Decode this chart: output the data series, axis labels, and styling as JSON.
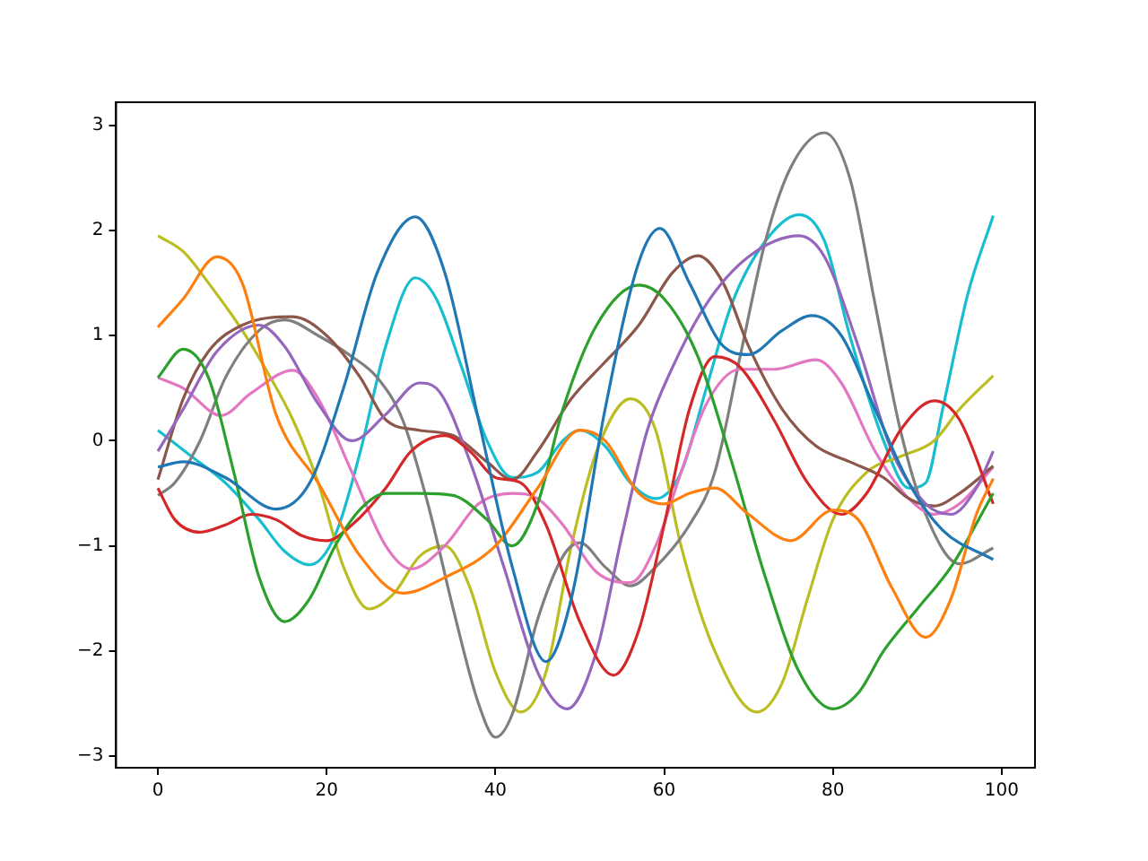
{
  "chart_data": {
    "type": "line",
    "xlim": [
      -4.95,
      103.95
    ],
    "ylim": [
      -3.11,
      3.22
    ],
    "xticks": [
      0,
      20,
      40,
      60,
      80,
      100
    ],
    "yticks": [
      -3,
      -2,
      -1,
      0,
      1,
      2,
      3
    ],
    "grid": false,
    "legend": false,
    "marker": "none",
    "line_style": "solid",
    "series": [
      {
        "color": "#1f77b4",
        "x": [
          0,
          3,
          8,
          14,
          18,
          22,
          26,
          30.5,
          34,
          38,
          42,
          46,
          49,
          53,
          57,
          59.5,
          63,
          67,
          70,
          74,
          77.5,
          81,
          85,
          89,
          93,
          99
        ],
        "values": [
          -0.25,
          -0.2,
          -0.35,
          -0.65,
          -0.4,
          0.5,
          1.6,
          2.13,
          1.6,
          0.2,
          -1.2,
          -2.1,
          -1.5,
          0.3,
          1.7,
          2.02,
          1.5,
          0.9,
          0.82,
          1.05,
          1.19,
          1.0,
          0.3,
          -0.4,
          -0.85,
          -1.13
        ]
      },
      {
        "color": "#ff7f0e",
        "x": [
          0,
          3,
          7,
          10,
          14,
          19,
          24,
          29,
          34,
          40,
          45,
          50,
          53,
          57,
          60,
          63,
          66,
          70,
          75,
          80,
          83,
          87,
          91,
          94,
          97,
          99
        ],
        "values": [
          1.08,
          1.35,
          1.75,
          1.5,
          0.25,
          -0.4,
          -1.1,
          -1.45,
          -1.3,
          -1.0,
          -0.45,
          0.1,
          0,
          -0.5,
          -0.6,
          -0.5,
          -0.45,
          -0.7,
          -0.95,
          -0.66,
          -0.75,
          -1.4,
          -1.87,
          -1.5,
          -0.7,
          -0.36
        ]
      },
      {
        "color": "#2ca02c",
        "x": [
          0,
          3,
          6,
          9,
          12,
          15,
          18,
          21,
          24,
          27,
          31,
          35,
          39,
          42,
          45,
          48,
          52,
          57,
          60,
          64,
          68,
          72,
          76,
          80,
          83,
          86,
          90,
          94,
          99
        ],
        "values": [
          0.6,
          0.87,
          0.6,
          -0.3,
          -1.3,
          -1.72,
          -1.5,
          -1.0,
          -0.65,
          -0.5,
          -0.5,
          -0.52,
          -0.75,
          -1.0,
          -0.6,
          0.3,
          1.1,
          1.48,
          1.35,
          0.8,
          -0.2,
          -1.3,
          -2.2,
          -2.55,
          -2.4,
          -2.0,
          -1.6,
          -1.2,
          -0.5
        ]
      },
      {
        "color": "#d62728",
        "x": [
          0,
          2,
          5,
          8,
          11,
          14,
          17,
          20,
          23,
          27,
          30,
          34,
          37,
          40,
          43,
          46,
          50,
          54,
          57,
          60,
          63,
          66,
          69,
          73,
          77,
          81,
          84,
          88,
          92,
          95,
          99
        ],
        "values": [
          -0.45,
          -0.75,
          -0.87,
          -0.8,
          -0.7,
          -0.75,
          -0.9,
          -0.95,
          -0.8,
          -0.45,
          -0.1,
          0.05,
          -0.1,
          -0.35,
          -0.4,
          -0.8,
          -1.72,
          -2.23,
          -1.8,
          -0.8,
          0.3,
          0.8,
          0.7,
          0.2,
          -0.4,
          -0.7,
          -0.5,
          0.1,
          0.38,
          0.2,
          -0.6
        ]
      },
      {
        "color": "#9467bd",
        "x": [
          0,
          3,
          7,
          12,
          15,
          19,
          23,
          27,
          31,
          33,
          37,
          41,
          45,
          48.5,
          52,
          55,
          58,
          61,
          65,
          70,
          76,
          79,
          83,
          87,
          91,
          94,
          97,
          99
        ],
        "values": [
          -0.1,
          0.3,
          0.85,
          1.1,
          0.9,
          0.35,
          0,
          0.25,
          0.55,
          0.5,
          -0.2,
          -1.2,
          -2.2,
          -2.55,
          -2.0,
          -0.9,
          0.1,
          0.7,
          1.3,
          1.75,
          1.95,
          1.75,
          0.9,
          -0.1,
          -0.6,
          -0.7,
          -0.45,
          -0.1
        ]
      },
      {
        "color": "#8c564b",
        "x": [
          0,
          3,
          6,
          10,
          16,
          20,
          24,
          27,
          31,
          35,
          39,
          42,
          45,
          49,
          53,
          57,
          61,
          64,
          67,
          70,
          74,
          78,
          82,
          86,
          89,
          92,
          95,
          99
        ],
        "values": [
          -0.37,
          0.4,
          0.85,
          1.1,
          1.18,
          1.0,
          0.6,
          0.2,
          0.1,
          0.05,
          -0.2,
          -0.37,
          -0.1,
          0.4,
          0.75,
          1.1,
          1.6,
          1.76,
          1.5,
          0.9,
          0.3,
          -0.05,
          -0.2,
          -0.35,
          -0.55,
          -0.62,
          -0.5,
          -0.24
        ]
      },
      {
        "color": "#e377c2",
        "x": [
          0,
          3,
          7.5,
          11,
          16,
          19,
          23,
          27,
          30,
          34,
          38,
          42,
          45,
          48,
          52,
          56,
          59,
          62,
          65,
          69,
          73,
          78,
          81,
          85,
          89,
          92,
          95,
          99
        ],
        "values": [
          0.6,
          0.5,
          0.24,
          0.45,
          0.67,
          0.4,
          -0.3,
          -1.0,
          -1.22,
          -1.0,
          -0.6,
          -0.5,
          -0.55,
          -0.8,
          -1.25,
          -1.35,
          -1.0,
          -0.3,
          0.35,
          0.68,
          0.68,
          0.77,
          0.55,
          -0.1,
          -0.55,
          -0.7,
          -0.6,
          -0.25
        ]
      },
      {
        "color": "#7f7f7f",
        "x": [
          0,
          2,
          5,
          8,
          12,
          15,
          19,
          23,
          26,
          29,
          32,
          35,
          38,
          40,
          42,
          45,
          48,
          50,
          53,
          56,
          59,
          63,
          66,
          69,
          72,
          75,
          79,
          82,
          85,
          88,
          91,
          95,
          99
        ],
        "values": [
          -0.52,
          -0.4,
          0,
          0.6,
          1.05,
          1.15,
          1.0,
          0.8,
          0.6,
          0.2,
          -0.6,
          -1.6,
          -2.5,
          -2.82,
          -2.6,
          -1.7,
          -1.1,
          -0.97,
          -1.2,
          -1.38,
          -1.2,
          -0.8,
          -0.3,
          0.8,
          1.9,
          2.6,
          2.93,
          2.5,
          1.3,
          0.1,
          -0.7,
          -1.17,
          -1.02
        ]
      },
      {
        "color": "#bcbd22",
        "x": [
          0,
          3,
          6,
          10,
          13,
          16,
          19,
          22,
          25,
          28,
          31,
          34,
          37,
          40,
          43,
          46,
          49,
          52,
          56,
          59,
          62,
          66,
          71,
          74,
          77,
          80,
          84,
          88,
          92,
          95,
          99
        ],
        "values": [
          1.95,
          1.8,
          1.5,
          1.05,
          0.65,
          0.2,
          -0.4,
          -1.2,
          -1.6,
          -1.45,
          -1.1,
          -1.0,
          -1.4,
          -2.2,
          -2.58,
          -2.2,
          -1.0,
          -0.1,
          0.4,
          0.1,
          -1.0,
          -2.0,
          -2.58,
          -2.3,
          -1.5,
          -0.75,
          -0.3,
          -0.15,
          0,
          0.3,
          0.62
        ]
      },
      {
        "color": "#17becf",
        "x": [
          0,
          4,
          8,
          12,
          15,
          18,
          21,
          24,
          27,
          30.5,
          33,
          36,
          39,
          42,
          45,
          48,
          50,
          53,
          56,
          59,
          62,
          65,
          68,
          72,
          76,
          79,
          82,
          86,
          89,
          91,
          93,
          96,
          99
        ],
        "values": [
          0.1,
          -0.15,
          -0.4,
          -0.75,
          -1.05,
          -1.18,
          -0.9,
          -0.1,
          0.9,
          1.55,
          1.35,
          0.7,
          0,
          -0.35,
          -0.3,
          0,
          0.1,
          -0.05,
          -0.4,
          -0.55,
          -0.3,
          0.5,
          1.3,
          1.9,
          2.15,
          1.9,
          1.0,
          0,
          -0.45,
          -0.4,
          0.3,
          1.4,
          2.14
        ]
      }
    ]
  }
}
